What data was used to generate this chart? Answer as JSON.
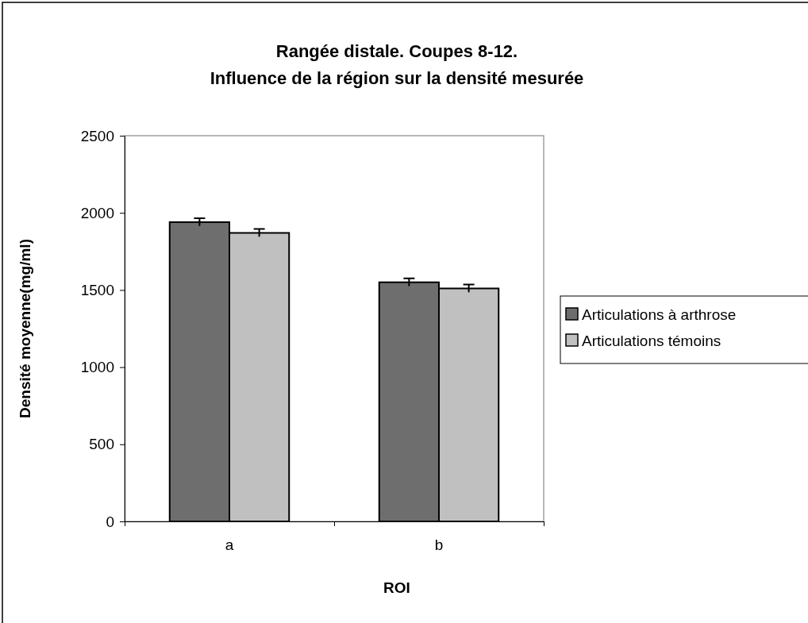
{
  "chart_data": {
    "type": "bar",
    "title": "Rangée distale. Coupes 8-12.\nInfluence de la région sur la densité mesurée",
    "xlabel": "ROI",
    "ylabel": "Densité moyenne(mg/ml)",
    "categories": [
      "a",
      "b"
    ],
    "series": [
      {
        "name": "Articulations à arthrose",
        "color": "#6e6e6e",
        "values": [
          1940,
          1550
        ],
        "errors": [
          25,
          25
        ]
      },
      {
        "name": "Articulations témoins",
        "color": "#c0c0c0",
        "values": [
          1870,
          1510
        ],
        "errors": [
          25,
          25
        ]
      }
    ],
    "ylim": [
      0,
      2500
    ],
    "yticks": [
      0,
      500,
      1000,
      1500,
      2000,
      2500
    ],
    "grid": false,
    "legend": "right"
  }
}
